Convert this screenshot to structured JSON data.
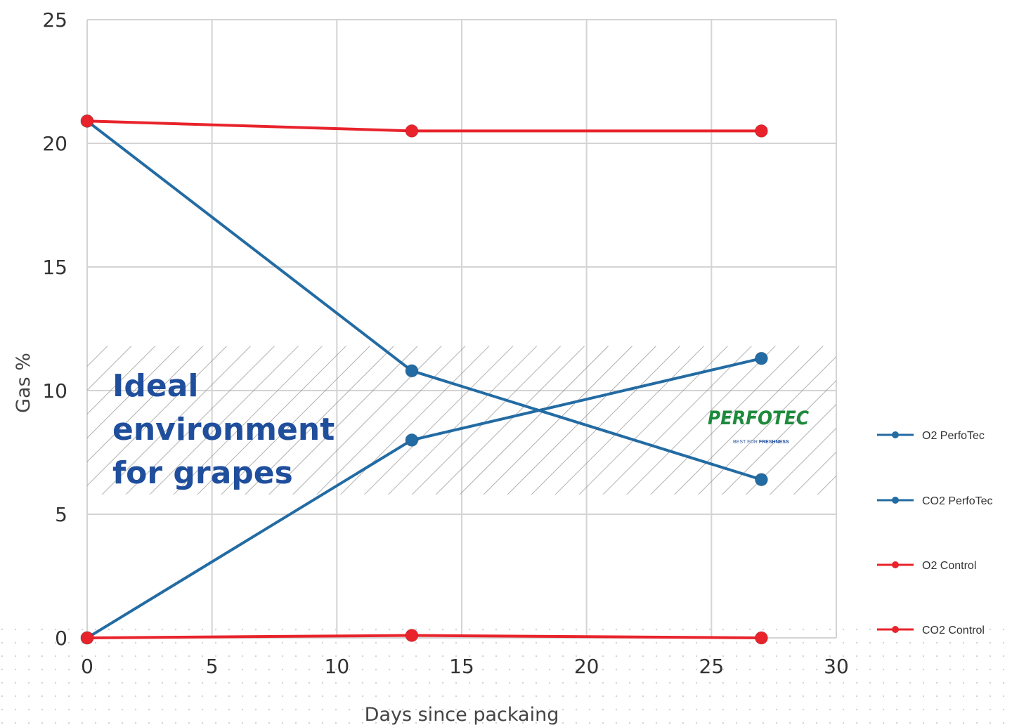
{
  "chart_data": {
    "type": "line",
    "title": "",
    "xlabel": "Days since packaing",
    "ylabel": "Gas %",
    "xlim": [
      0,
      30
    ],
    "ylim": [
      0,
      25
    ],
    "x_ticks": [
      0,
      5,
      10,
      15,
      20,
      25,
      30
    ],
    "y_ticks": [
      0,
      5,
      10,
      15,
      20,
      25
    ],
    "grid": true,
    "legend_position": "right",
    "series": [
      {
        "name": "O2  PerfoTec",
        "color": "#236ba3",
        "points": [
          [
            0,
            20.9
          ],
          [
            13,
            10.8
          ],
          [
            27,
            6.4
          ]
        ]
      },
      {
        "name": "CO2 PerfoTec",
        "color": "#236ba3",
        "points": [
          [
            0,
            0
          ],
          [
            13,
            8.0
          ],
          [
            27,
            11.3
          ]
        ]
      },
      {
        "name": "O2 Control",
        "color": "#e8232b",
        "points": [
          [
            0,
            20.9
          ],
          [
            13,
            20.5
          ],
          [
            27,
            20.5
          ]
        ]
      },
      {
        "name": "CO2 Control",
        "color": "#e8232b",
        "points": [
          [
            0,
            0
          ],
          [
            13,
            0.1
          ],
          [
            27,
            0
          ]
        ]
      }
    ],
    "annotation": {
      "text_lines": [
        "Ideal",
        "environment",
        "for grapes"
      ],
      "y_range": [
        5.8,
        11.8
      ]
    },
    "logo": {
      "text": "PERFOTEC",
      "tagline_left": "BEST FOR",
      "tagline_right": "FRESHNESS"
    }
  }
}
